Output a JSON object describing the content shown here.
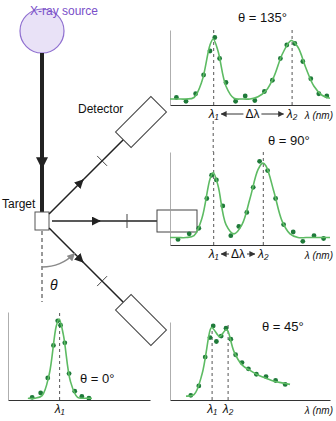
{
  "diagram": {
    "source": "X-ray source",
    "detector": "Detector",
    "target": "Target",
    "angle": "θ"
  },
  "chart_data": [
    {
      "type": "scatter",
      "title": "θ = 135°",
      "xlabel": "λ (nm)",
      "annotation": "Δλ",
      "xlim": [
        0,
        10
      ],
      "ylim": [
        0,
        1
      ],
      "xticks": [
        {
          "value": 2.7,
          "label": "λ₁"
        },
        {
          "value": 7.6,
          "label": "λ₂"
        }
      ],
      "tick_labels": "x",
      "series": [
        {
          "type": "scatter",
          "marker": "circle",
          "color": "#1f7a3a",
          "x": [
            0.4,
            1.0,
            1.6,
            2.1,
            2.5,
            2.8,
            3.1,
            3.5,
            4.1,
            4.7,
            5.3,
            5.9,
            6.4,
            6.9,
            7.3,
            7.8,
            8.3,
            8.8,
            9.3,
            9.8
          ],
          "values": [
            0.1,
            0.05,
            0.15,
            0.4,
            0.72,
            0.9,
            0.62,
            0.3,
            0.05,
            0.12,
            0.06,
            0.18,
            0.33,
            0.62,
            0.8,
            0.82,
            0.58,
            0.35,
            0.15,
            0.12
          ]
        },
        {
          "type": "line",
          "line_style": "solid",
          "color": "#5dbb63",
          "x": [
            0,
            0.5,
            1,
            1.5,
            2,
            2.5,
            2.7,
            3,
            3.5,
            4,
            4.5,
            5,
            5.5,
            6,
            6.5,
            7,
            7.5,
            7.6,
            8,
            8.5,
            9,
            9.5,
            10
          ],
          "values": [
            0.08,
            0.08,
            0.08,
            0.1,
            0.32,
            0.8,
            0.88,
            0.72,
            0.25,
            0.09,
            0.08,
            0.08,
            0.11,
            0.19,
            0.38,
            0.67,
            0.85,
            0.86,
            0.77,
            0.49,
            0.25,
            0.13,
            0.09
          ]
        }
      ]
    },
    {
      "type": "scatter",
      "title": "θ = 90°",
      "xlabel": "λ (nm)",
      "annotation": "Δλ",
      "xlim": [
        0,
        10
      ],
      "ylim": [
        0,
        1
      ],
      "xticks": [
        {
          "value": 2.7,
          "label": "λ₁"
        },
        {
          "value": 5.8,
          "label": "λ₂"
        }
      ],
      "tick_labels": "x",
      "series": [
        {
          "type": "scatter",
          "marker": "circle",
          "color": "#1f7a3a",
          "x": [
            0.5,
            1.2,
            1.8,
            2.3,
            2.6,
            2.9,
            3.3,
            3.8,
            4.3,
            4.8,
            5.2,
            5.6,
            6.1,
            6.6,
            7.1,
            7.7,
            8.3,
            9.0,
            9.6
          ],
          "values": [
            0.06,
            0.12,
            0.18,
            0.5,
            0.75,
            0.7,
            0.42,
            0.1,
            0.2,
            0.35,
            0.62,
            0.9,
            0.8,
            0.5,
            0.22,
            0.14,
            0.04,
            0.1,
            0.07
          ]
        },
        {
          "type": "line",
          "line_style": "solid",
          "color": "#5dbb63",
          "x": [
            0,
            0.5,
            1,
            1.5,
            2,
            2.5,
            2.7,
            3,
            3.5,
            4,
            4.5,
            5,
            5.5,
            5.8,
            6,
            6.5,
            7,
            7.5,
            8,
            8.5,
            9,
            9.5,
            10
          ],
          "values": [
            0.08,
            0.08,
            0.08,
            0.1,
            0.29,
            0.71,
            0.78,
            0.64,
            0.22,
            0.12,
            0.22,
            0.5,
            0.81,
            0.88,
            0.85,
            0.57,
            0.26,
            0.12,
            0.08,
            0.08,
            0.08,
            0.08,
            0.08
          ]
        }
      ]
    },
    {
      "type": "scatter",
      "title": "θ = 0°",
      "xlim": [
        -0.9,
        9.1
      ],
      "ylim": [
        0,
        1
      ],
      "xticks": [
        {
          "value": 2.7,
          "label": "λ₁"
        }
      ],
      "tick_labels": "x",
      "series": [
        {
          "type": "scatter",
          "marker": "circle",
          "color": "#1f7a3a",
          "x": [
            0.8,
            1.4,
            1.9,
            2.3,
            2.6,
            2.8,
            3.1,
            3.4,
            3.8,
            4.3,
            4.8
          ],
          "values": [
            0.03,
            0.08,
            0.25,
            0.62,
            0.9,
            0.85,
            0.65,
            0.3,
            0.1,
            0.04,
            0.02
          ]
        },
        {
          "type": "line",
          "line_style": "solid",
          "color": "#5dbb63",
          "x": [
            0.5,
            1,
            1.5,
            2,
            2.5,
            2.7,
            3,
            3.5,
            4,
            4.5,
            5
          ],
          "values": [
            0.02,
            0.02,
            0.05,
            0.29,
            0.84,
            0.92,
            0.74,
            0.21,
            0.03,
            0.02,
            0.02
          ]
        }
      ]
    },
    {
      "type": "scatter",
      "title": "θ = 45°",
      "xlabel": "λ (nm)",
      "xlim": [
        0,
        10
      ],
      "ylim": [
        0,
        1
      ],
      "xticks": [
        {
          "value": 2.6,
          "label": "λ₁"
        },
        {
          "value": 3.6,
          "label": "λ₂"
        }
      ],
      "tick_labels": "x",
      "series": [
        {
          "type": "scatter",
          "marker": "circle",
          "color": "#1f7a3a",
          "x": [
            1.3,
            1.8,
            2.2,
            2.5,
            2.7,
            2.9,
            3.2,
            3.5,
            3.8,
            4.1,
            4.5,
            4.9,
            5.4,
            6.0,
            6.6,
            7.2
          ],
          "values": [
            0.06,
            0.18,
            0.55,
            0.8,
            0.95,
            0.75,
            0.82,
            0.92,
            0.78,
            0.58,
            0.48,
            0.4,
            0.33,
            0.3,
            0.25,
            0.2
          ]
        },
        {
          "type": "line",
          "line_style": "solid",
          "color": "#5dbb63",
          "x": [
            1,
            1.5,
            2,
            2.5,
            2.6,
            3,
            3.1,
            3.5,
            3.6,
            4,
            4.5,
            5,
            5.5,
            6,
            6.5,
            7,
            7.5
          ],
          "values": [
            0.05,
            0.07,
            0.33,
            0.89,
            0.93,
            0.83,
            0.81,
            0.9,
            0.89,
            0.62,
            0.45,
            0.38,
            0.32,
            0.28,
            0.24,
            0.22,
            0.2
          ]
        }
      ]
    }
  ]
}
